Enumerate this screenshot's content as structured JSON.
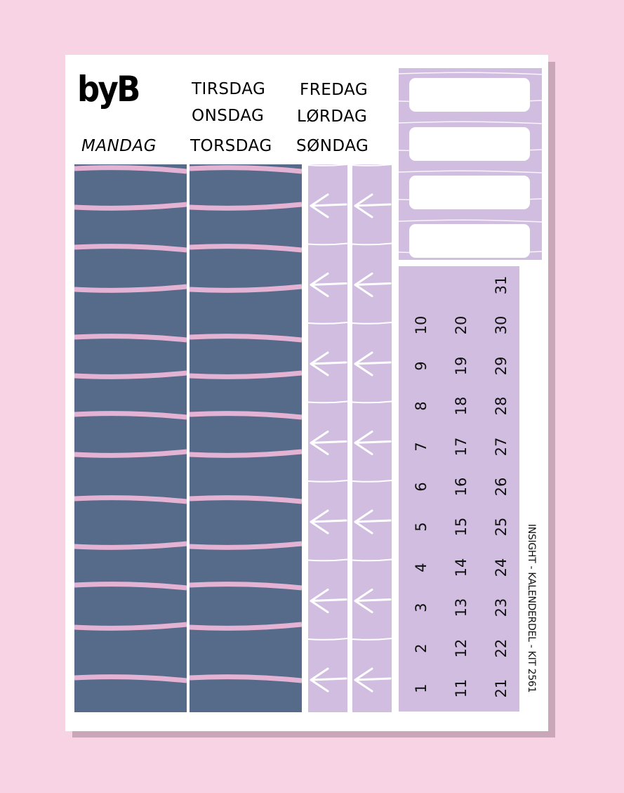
{
  "brand": {
    "logo": "byB"
  },
  "days": {
    "monday": "MANDAG",
    "tuesday": "TIRSDAG",
    "wednesday": "ONSDAG",
    "thursday": "TORSDAG",
    "friday": "FREDAG",
    "saturday": "LØRDAG",
    "sunday": "SØNDAG"
  },
  "calendar": {
    "numbers": [
      1,
      2,
      3,
      4,
      5,
      6,
      7,
      8,
      9,
      10,
      11,
      12,
      13,
      14,
      15,
      16,
      17,
      18,
      19,
      20,
      21,
      22,
      23,
      24,
      25,
      26,
      27,
      28,
      29,
      30,
      31
    ]
  },
  "footer": "INSIGHT - KALENDERDEL - KIT 2561",
  "colors": {
    "background": "#f7d3e4",
    "navy": "#566a8a",
    "pink_stripe": "#e4b3d4",
    "lavender": "#d0bde0",
    "shadow": "#c9a6b8"
  },
  "icons": {
    "arrow": "arrow-left-icon"
  }
}
